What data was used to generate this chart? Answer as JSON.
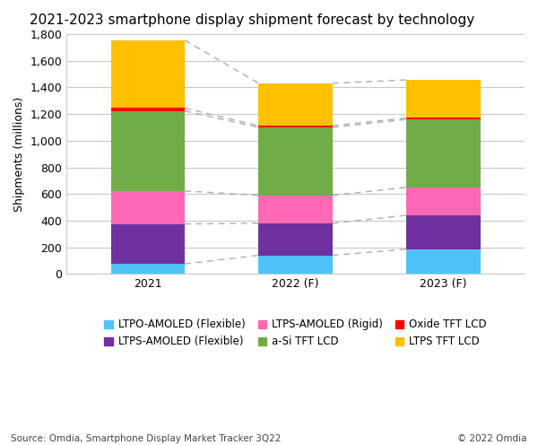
{
  "title": "2021-2023 smartphone display shipment forecast by technology",
  "ylabel": "Shipments (millions)",
  "source": "Source: Omdia, Smartphone Display Market Tracker 3Q22",
  "copyright": "© 2022 Omdia",
  "categories": [
    "2021",
    "2022 (F)",
    "2023 (F)"
  ],
  "series": [
    {
      "name": "LTPO-AMOLED (Flexible)",
      "values": [
        75,
        140,
        185
      ],
      "color": "#4FC3F7"
    },
    {
      "name": "LTPS-AMOLED (Flexible)",
      "values": [
        300,
        240,
        255
      ],
      "color": "#7030A0"
    },
    {
      "name": "LTPS-AMOLED (Rigid)",
      "values": [
        248,
        210,
        210
      ],
      "color": "#FF69B4"
    },
    {
      "name": "a-Si TFT LCD",
      "values": [
        600,
        510,
        510
      ],
      "color": "#70AD47"
    },
    {
      "name": "Oxide TFT LCD",
      "values": [
        22,
        12,
        12
      ],
      "color": "#FF0000"
    },
    {
      "name": "LTPS TFT LCD",
      "values": [
        510,
        320,
        285
      ],
      "color": "#FFC000"
    }
  ],
  "ylim": [
    0,
    1800
  ],
  "yticks": [
    0,
    200,
    400,
    600,
    800,
    1000,
    1200,
    1400,
    1600,
    1800
  ],
  "background_color": "#FFFFFF",
  "grid_color": "#C8C8C8",
  "bar_width": 0.5,
  "dashed_line_color": "#A0A0A0",
  "title_fontsize": 11,
  "axis_fontsize": 9,
  "legend_fontsize": 8.5,
  "tick_fontsize": 9
}
